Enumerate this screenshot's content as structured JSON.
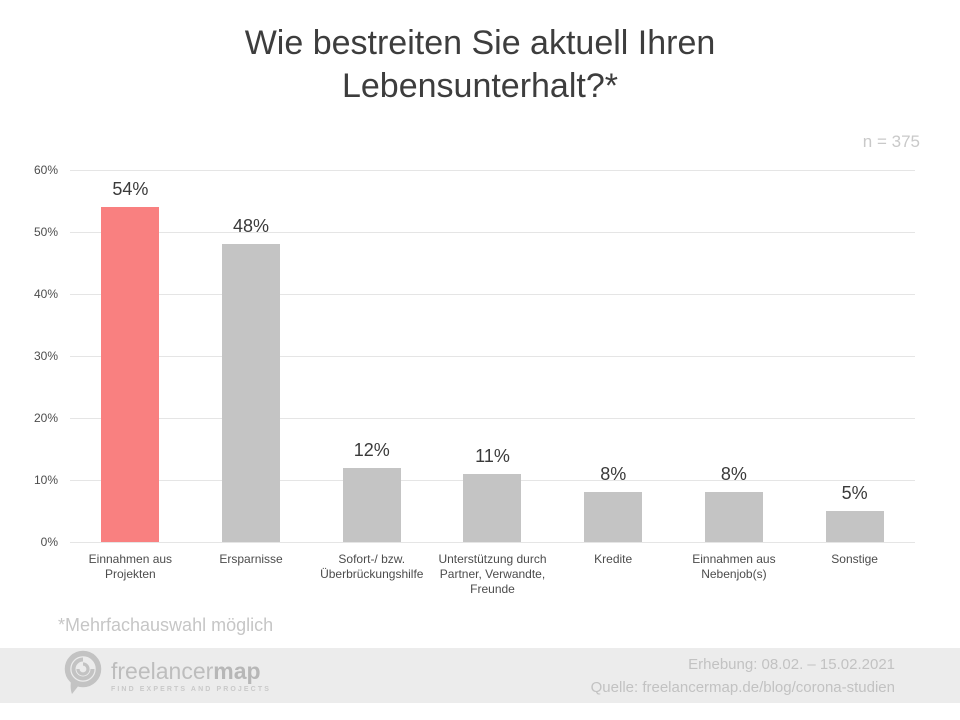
{
  "title": "Wie bestreiten Sie aktuell Ihren Lebensunterhalt?*",
  "sample_size_label": "n = 375",
  "footnote": "*Mehrfachauswahl möglich",
  "chart_data": {
    "type": "bar",
    "title": "Wie bestreiten Sie aktuell Ihren Lebensunterhalt?*",
    "categories": [
      "Einnahmen aus Projekten",
      "Ersparnisse",
      "Sofort-/ bzw. Überbrückungshilfe",
      "Unterstützung durch Partner, Verwandte, Freunde",
      "Kredite",
      "Einnahmen aus Nebenjob(s)",
      "Sonstige"
    ],
    "values": [
      54,
      48,
      12,
      11,
      8,
      8,
      5
    ],
    "value_labels": [
      "54%",
      "48%",
      "12%",
      "11%",
      "8%",
      "8%",
      "5%"
    ],
    "xlabel": "",
    "ylabel": "",
    "ylim": [
      0,
      60
    ],
    "ytick_step": 10,
    "ytick_labels": [
      "0%",
      "10%",
      "20%",
      "30%",
      "40%",
      "50%",
      "60%"
    ],
    "grid": true,
    "legend": false,
    "highlight_index": 0,
    "colors": {
      "highlight": "#f98080",
      "default": "#c4c4c4",
      "grid": "#e5e5e5"
    }
  },
  "footer": {
    "logo": {
      "icon": "freelancermap-pin-swirl-icon",
      "brand_light": "freelancer",
      "brand_bold": "map",
      "tagline": "FIND EXPERTS AND PROJECTS"
    },
    "survey_period": "Erhebung: 08.02. – 15.02.2021",
    "source": "Quelle: freelancermap.de/blog/corona-studien"
  },
  "colors": {
    "title_text": "#3d3d3d",
    "axis_text": "#4d4d4d",
    "muted_text": "#c8c8c8",
    "footer_background": "#ececec",
    "footer_text": "#c2c2c2"
  }
}
